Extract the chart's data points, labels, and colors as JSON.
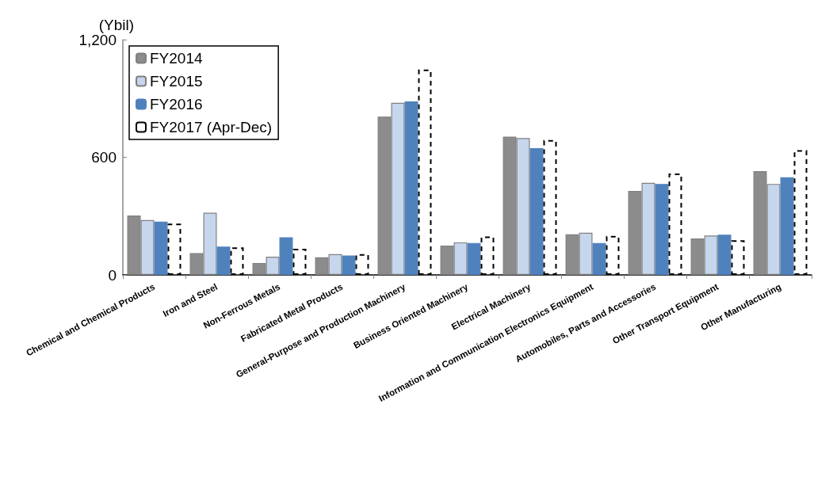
{
  "chart_data": {
    "type": "bar",
    "ylabel": "(Ybil)",
    "categories": [
      "Chemical and Chemical Products",
      "Iron and Steel",
      "Non-Ferrous Metals",
      "Fabricated Metal Products",
      "General-Purpose and Production Machinery",
      "Business Oriented Machinery",
      "Electrical Machinery",
      "Information and Communication Electronics Equipment",
      "Automobiles, Parts and Accessories",
      "Other Transport Equipment",
      "Other Manufacturing"
    ],
    "series": [
      {
        "name": "FY2014",
        "color": "#8c8c8c",
        "values": [
          303,
          111,
          61,
          90,
          807,
          150,
          705,
          207,
          428,
          186,
          529
        ]
      },
      {
        "name": "FY2015",
        "color": "#c6d6ec",
        "values": [
          280,
          317,
          93,
          106,
          878,
          166,
          698,
          215,
          470,
          201,
          464
        ]
      },
      {
        "name": "FY2016",
        "color": "#4f81bd",
        "values": [
          272,
          144,
          192,
          99,
          885,
          163,
          646,
          163,
          464,
          205,
          498
        ]
      },
      {
        "name": "FY2017 (Apr-Dec)",
        "color": "#ffffff",
        "line_style": "dashed",
        "values": [
          262,
          140,
          133,
          106,
          1047,
          196,
          688,
          199,
          517,
          177,
          636
        ]
      }
    ],
    "ylim": [
      0,
      1200
    ],
    "yticks": [
      0,
      600,
      {
        "value": 1200,
        "label": "1,200"
      }
    ],
    "grid": false,
    "legend": "top left"
  }
}
